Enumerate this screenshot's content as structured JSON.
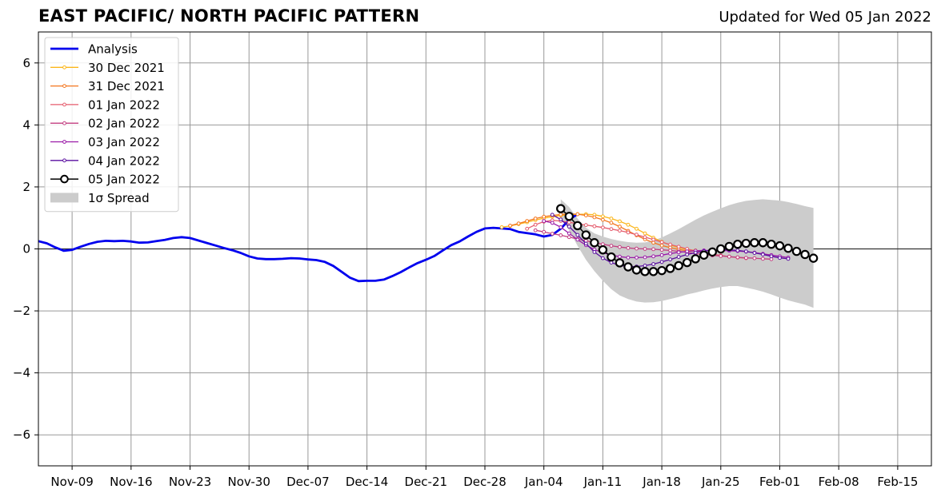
{
  "title": "EAST PACIFIC/ NORTH PACIFIC PATTERN",
  "updated": "Updated for Wed 05 Jan 2022",
  "chart_data": {
    "type": "line",
    "title": "EAST PACIFIC/ NORTH PACIFIC PATTERN",
    "subtitle": "Updated for Wed 05 Jan 2022",
    "xlabel": "",
    "ylabel": "",
    "x_is_date": true,
    "xlim": [
      "2021-11-05",
      "2022-02-19"
    ],
    "ylim": [
      -7,
      7
    ],
    "x_ticks": [
      {
        "date": "2021-11-09",
        "label": "Nov-09"
      },
      {
        "date": "2021-11-16",
        "label": "Nov-16"
      },
      {
        "date": "2021-11-23",
        "label": "Nov-23"
      },
      {
        "date": "2021-11-30",
        "label": "Nov-30"
      },
      {
        "date": "2021-12-07",
        "label": "Dec-07"
      },
      {
        "date": "2021-12-14",
        "label": "Dec-14"
      },
      {
        "date": "2021-12-21",
        "label": "Dec-21"
      },
      {
        "date": "2021-12-28",
        "label": "Dec-28"
      },
      {
        "date": "2022-01-04",
        "label": "Jan-04"
      },
      {
        "date": "2022-01-11",
        "label": "Jan-11"
      },
      {
        "date": "2022-01-18",
        "label": "Jan-18"
      },
      {
        "date": "2022-01-25",
        "label": "Jan-25"
      },
      {
        "date": "2022-02-01",
        "label": "Feb-01"
      },
      {
        "date": "2022-02-08",
        "label": "Feb-08"
      },
      {
        "date": "2022-02-15",
        "label": "Feb-15"
      }
    ],
    "y_ticks": [
      {
        "value": -6,
        "label": "−6"
      },
      {
        "value": -4,
        "label": "−4"
      },
      {
        "value": -2,
        "label": "−2"
      },
      {
        "value": 0,
        "label": "0"
      },
      {
        "value": 2,
        "label": "2"
      },
      {
        "value": 4,
        "label": "4"
      },
      {
        "value": 6,
        "label": "6"
      }
    ],
    "grid": true,
    "zero_line": true,
    "legend_position": "top-left",
    "series": [
      {
        "name": "Analysis",
        "color": "#0000ee",
        "style": "thick",
        "start": "2021-11-05",
        "values": [
          0.25,
          0.18,
          0.05,
          -0.06,
          -0.03,
          0.07,
          0.16,
          0.23,
          0.26,
          0.25,
          0.26,
          0.24,
          0.2,
          0.21,
          0.25,
          0.29,
          0.35,
          0.38,
          0.35,
          0.27,
          0.19,
          0.11,
          0.03,
          -0.04,
          -0.13,
          -0.24,
          -0.31,
          -0.33,
          -0.33,
          -0.32,
          -0.3,
          -0.31,
          -0.34,
          -0.36,
          -0.42,
          -0.55,
          -0.74,
          -0.93,
          -1.04,
          -1.03,
          -1.03,
          -0.99,
          -0.88,
          -0.75,
          -0.6,
          -0.46,
          -0.35,
          -0.23,
          -0.05,
          0.12,
          0.24,
          0.4,
          0.55,
          0.66,
          0.68,
          0.66,
          0.64,
          0.55,
          0.51,
          0.47,
          0.4,
          0.45,
          0.65,
          0.95,
          1.12
        ]
      },
      {
        "name": "30 Dec 2021",
        "color": "#fbb61a",
        "style": "dots",
        "start": "2021-12-30",
        "values": [
          0.7,
          0.74,
          0.8,
          0.86,
          0.93,
          0.99,
          1.04,
          1.08,
          1.1,
          1.12,
          1.12,
          1.1,
          1.05,
          0.98,
          0.89,
          0.78,
          0.65,
          0.5,
          0.36,
          0.23,
          0.12,
          0.04,
          -0.02,
          -0.05
        ]
      },
      {
        "name": "31 Dec 2021",
        "color": "#f3761e",
        "style": "dots",
        "start": "2021-12-31",
        "values": [
          0.75,
          0.82,
          0.9,
          0.98,
          1.04,
          1.08,
          1.11,
          1.13,
          1.12,
          1.08,
          1.02,
          0.94,
          0.84,
          0.72,
          0.58,
          0.44,
          0.31,
          0.2,
          0.11,
          0.04,
          -0.02,
          -0.06,
          -0.08,
          -0.09
        ]
      },
      {
        "name": "01 Jan 2022",
        "color": "#e55c6d",
        "style": "dots",
        "start": "2022-01-02",
        "values": [
          0.65,
          0.78,
          0.88,
          0.92,
          0.9,
          0.86,
          0.81,
          0.77,
          0.73,
          0.69,
          0.64,
          0.59,
          0.53,
          0.46,
          0.38,
          0.3,
          0.22,
          0.14,
          0.07,
          0.0,
          -0.07,
          -0.12,
          -0.17,
          -0.21,
          -0.25,
          -0.28,
          -0.3
        ]
      },
      {
        "name": "02 Jan 2022",
        "color": "#c33d80",
        "style": "dots",
        "start": "2022-01-03",
        "values": [
          0.6,
          0.55,
          0.49,
          0.44,
          0.38,
          0.32,
          0.26,
          0.2,
          0.15,
          0.1,
          0.06,
          0.03,
          0.01,
          0.0,
          -0.01,
          -0.03,
          -0.05,
          -0.08,
          -0.11,
          -0.15,
          -0.18,
          -0.21,
          -0.23,
          -0.25,
          -0.27,
          -0.29,
          -0.3,
          -0.32,
          -0.33
        ]
      },
      {
        "name": "03 Jan 2022",
        "color": "#9a1aa8",
        "style": "dots",
        "start": "2022-01-04",
        "values": [
          0.9,
          0.84,
          0.7,
          0.5,
          0.3,
          0.12,
          -0.02,
          -0.12,
          -0.2,
          -0.25,
          -0.28,
          -0.28,
          -0.27,
          -0.24,
          -0.2,
          -0.15,
          -0.11,
          -0.08,
          -0.06,
          -0.05,
          -0.05,
          -0.05,
          -0.06,
          -0.07,
          -0.09,
          -0.12,
          -0.16,
          -0.2,
          -0.24,
          -0.28
        ]
      },
      {
        "name": "04 Jan 2022",
        "color": "#5a0fa0",
        "style": "dots",
        "start": "2022-01-05",
        "values": [
          1.1,
          0.95,
          0.72,
          0.45,
          0.17,
          -0.1,
          -0.3,
          -0.44,
          -0.53,
          -0.57,
          -0.57,
          -0.54,
          -0.49,
          -0.42,
          -0.34,
          -0.26,
          -0.18,
          -0.12,
          -0.07,
          -0.04,
          -0.03,
          -0.03,
          -0.05,
          -0.08,
          -0.13,
          -0.18,
          -0.24,
          -0.29,
          -0.32
        ]
      },
      {
        "name": "05 Jan 2022",
        "color": "#000000",
        "style": "circles",
        "start": "2022-01-06",
        "values": [
          1.3,
          1.05,
          0.75,
          0.45,
          0.2,
          -0.03,
          -0.26,
          -0.45,
          -0.58,
          -0.68,
          -0.73,
          -0.73,
          -0.7,
          -0.63,
          -0.54,
          -0.44,
          -0.32,
          -0.2,
          -0.1,
          0.0,
          0.08,
          0.15,
          0.18,
          0.2,
          0.2,
          0.15,
          0.1,
          0.02,
          -0.08,
          -0.18,
          -0.3
        ]
      }
    ],
    "spread": {
      "name": "1σ Spread",
      "color": "#cccccc",
      "start": "2022-01-06",
      "upper": [
        1.6,
        1.35,
        0.98,
        0.68,
        0.5,
        0.4,
        0.32,
        0.26,
        0.22,
        0.2,
        0.21,
        0.27,
        0.37,
        0.5,
        0.64,
        0.79,
        0.94,
        1.08,
        1.2,
        1.31,
        1.41,
        1.49,
        1.55,
        1.58,
        1.6,
        1.58,
        1.56,
        1.51,
        1.45,
        1.38,
        1.32
      ],
      "lower": [
        1.0,
        0.6,
        0.1,
        -0.35,
        -0.72,
        -1.03,
        -1.3,
        -1.5,
        -1.62,
        -1.7,
        -1.73,
        -1.72,
        -1.68,
        -1.62,
        -1.55,
        -1.47,
        -1.41,
        -1.34,
        -1.28,
        -1.23,
        -1.2,
        -1.2,
        -1.25,
        -1.31,
        -1.38,
        -1.47,
        -1.57,
        -1.66,
        -1.73,
        -1.8,
        -1.9
      ]
    },
    "legend": [
      {
        "label": "Analysis",
        "marker": "line",
        "color": "#0000ee"
      },
      {
        "label": "30 Dec 2021",
        "marker": "dot-line",
        "color": "#fbb61a"
      },
      {
        "label": "31 Dec 2021",
        "marker": "dot-line",
        "color": "#f3761e"
      },
      {
        "label": "01 Jan 2022",
        "marker": "dot-line",
        "color": "#e55c6d"
      },
      {
        "label": "02 Jan 2022",
        "marker": "dot-line",
        "color": "#c33d80"
      },
      {
        "label": "03 Jan 2022",
        "marker": "dot-line",
        "color": "#9a1aa8"
      },
      {
        "label": "04 Jan 2022",
        "marker": "dot-line",
        "color": "#5a0fa0"
      },
      {
        "label": "05 Jan 2022",
        "marker": "circle-line",
        "color": "#000000"
      },
      {
        "label": "1σ Spread",
        "marker": "patch",
        "color": "#cccccc"
      }
    ]
  }
}
